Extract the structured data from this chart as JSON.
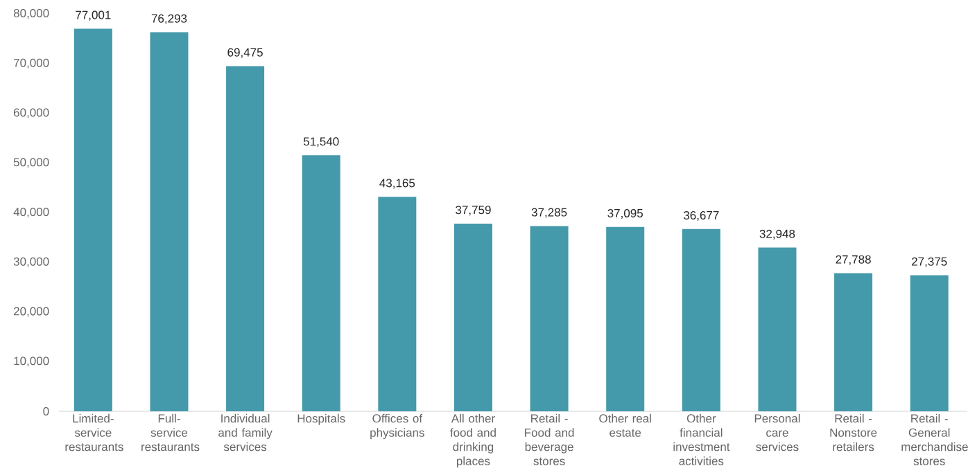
{
  "chart_data": {
    "type": "bar",
    "categories": [
      "Limited-service restaurants",
      "Full-service restaurants",
      "Individual and family services",
      "Hospitals",
      "Offices of physicians",
      "All other food and drinking places",
      "Retail - Food and beverage stores",
      "Other real estate",
      "Other financial investment activities",
      "Personal care services",
      "Retail - Nonstore retailers",
      "Retail - General merchandise stores"
    ],
    "values": [
      77001,
      76293,
      69475,
      51540,
      43165,
      37759,
      37285,
      37095,
      36677,
      32948,
      27788,
      27375
    ],
    "value_labels": [
      "77,001",
      "76,293",
      "69,475",
      "51,540",
      "43,165",
      "37,759",
      "37,285",
      "37,095",
      "36,677",
      "32,948",
      "27,788",
      "27,375"
    ],
    "color": "#4499aa",
    "ylim": [
      0,
      80000
    ],
    "yticks": [
      {
        "value": 0,
        "label": "0"
      },
      {
        "value": 10000,
        "label": "10,000"
      },
      {
        "value": 20000,
        "label": "20,000"
      },
      {
        "value": 30000,
        "label": "30,000"
      },
      {
        "value": 40000,
        "label": "40,000"
      },
      {
        "value": 50000,
        "label": "50,000"
      },
      {
        "value": 60000,
        "label": "60,000"
      },
      {
        "value": 70000,
        "label": "70,000"
      },
      {
        "value": 80000,
        "label": "80,000"
      }
    ],
    "line_style": "solid"
  }
}
